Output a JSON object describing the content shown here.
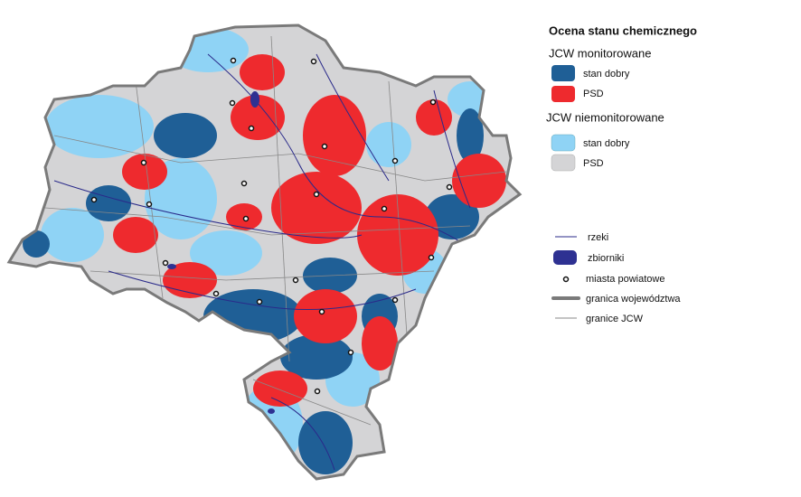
{
  "legend": {
    "title": "Ocena stanu chemicznego",
    "groups": [
      {
        "title": "JCW monitorowane",
        "items": [
          "stan dobry",
          "PSD"
        ]
      },
      {
        "title": "JCW niemonitorowane",
        "items": [
          "stan dobry",
          "PSD"
        ]
      }
    ],
    "symbols": [
      "rzeki",
      "zbiorniki",
      "miasta powiatowe",
      "granica województwa",
      "granice JCW"
    ]
  }
}
